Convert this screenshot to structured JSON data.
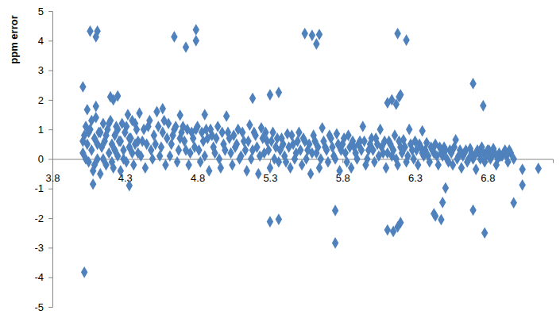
{
  "chart_data": {
    "type": "scatter",
    "y_label": "ppm error",
    "color": "#4f81bd",
    "marker": "diamond",
    "grid": false,
    "xlim": [
      3.8,
      7.25
    ],
    "xticks": [
      3.8,
      4.3,
      4.8,
      5.3,
      5.8,
      6.3,
      6.8
    ],
    "ylim": [
      -5,
      5
    ],
    "yticks": [
      -5,
      -4,
      -3,
      -2,
      -1,
      0,
      1,
      2,
      3,
      4,
      5
    ],
    "x": [
      4.01,
      4.02,
      4.03,
      4.04,
      4.05,
      4.06,
      4.07,
      4.08,
      4.09,
      4.1,
      4.11,
      4.12,
      4.13,
      4.14,
      4.15,
      4.16,
      4.17,
      4.18,
      4.19,
      4.2,
      4.21,
      4.22,
      4.23,
      4.24,
      4.25,
      4.26,
      4.27,
      4.28,
      4.29,
      4.3,
      4.31,
      4.32,
      4.33,
      4.34,
      4.35,
      4.36,
      4.37,
      4.38,
      4.39,
      4.4,
      4.42,
      4.44,
      4.46,
      4.48,
      4.5,
      4.52,
      4.54,
      4.56,
      4.58,
      4.6,
      4.62,
      4.64,
      4.66,
      4.68,
      4.7,
      4.72,
      4.74,
      4.76,
      4.78,
      4.8,
      4.82,
      4.84,
      4.86,
      4.88,
      4.9,
      4.92,
      4.94,
      4.96,
      4.98,
      5.0,
      5.02,
      5.04,
      5.06,
      5.08,
      5.1,
      5.12,
      5.14,
      5.16,
      5.18,
      5.2,
      5.22,
      5.24,
      5.26,
      5.28,
      5.3,
      5.32,
      5.34,
      5.36,
      5.38,
      5.4,
      5.42,
      5.44,
      5.46,
      5.48,
      5.5,
      5.52,
      5.54,
      5.56,
      5.58,
      5.6,
      5.62,
      5.64,
      5.66,
      5.68,
      5.7,
      5.72,
      5.74,
      5.76,
      5.78,
      5.8,
      5.82,
      5.84,
      5.86,
      5.88,
      5.9,
      5.92,
      5.94,
      5.96,
      5.98,
      6.0,
      6.02,
      6.04,
      6.06,
      6.08,
      6.1,
      6.12,
      6.14,
      6.16,
      6.18,
      6.2,
      6.22,
      6.24,
      6.26,
      6.28,
      6.3,
      6.32,
      6.34,
      6.36,
      6.38,
      6.4,
      6.42,
      6.44,
      6.46,
      6.48,
      6.5,
      6.52,
      6.54,
      6.56,
      6.58,
      6.6,
      6.62,
      6.64,
      6.66,
      6.68,
      6.7,
      6.72,
      6.74,
      6.76,
      6.78,
      6.8,
      6.82,
      6.84,
      6.86,
      6.88,
      6.9,
      6.92,
      6.94,
      6.96,
      6.98,
      4.01,
      4.03,
      4.05,
      4.07,
      4.09,
      4.11,
      4.13,
      4.15,
      4.17,
      4.19,
      4.21,
      4.23,
      4.25,
      4.27,
      4.29,
      4.31,
      4.33,
      4.35,
      4.37,
      4.39,
      4.41,
      4.43,
      4.45,
      4.47,
      4.49,
      4.51,
      4.53,
      4.55,
      4.57,
      4.59,
      4.61,
      4.63,
      4.65,
      4.67,
      4.69,
      4.71,
      4.73,
      4.75,
      4.77,
      4.79,
      4.81,
      4.83,
      4.85,
      4.87,
      4.89,
      4.91,
      4.93,
      4.95,
      4.97,
      4.99,
      5.01,
      5.03,
      5.05,
      5.07,
      5.09,
      5.11,
      5.13,
      5.15,
      5.17,
      5.19,
      5.21,
      5.23,
      5.25,
      5.27,
      5.29,
      5.31,
      5.33,
      5.35,
      5.37,
      5.39,
      5.41,
      5.43,
      5.45,
      5.47,
      5.49,
      5.51,
      5.53,
      5.55,
      5.57,
      5.59,
      5.61,
      5.63,
      5.65,
      5.67,
      5.69,
      5.71,
      5.73,
      5.75,
      5.77,
      5.79,
      5.81,
      5.83,
      5.85,
      5.87,
      5.89,
      5.91,
      5.93,
      5.95,
      5.97,
      5.99,
      6.01,
      6.03,
      6.05,
      6.07,
      6.09,
      6.11,
      6.13,
      6.15,
      6.17,
      6.19,
      6.21,
      6.23,
      6.25,
      6.27,
      6.29,
      6.31,
      6.33,
      6.35,
      6.37,
      6.39,
      6.41,
      6.43,
      6.45,
      6.47,
      6.49,
      6.51,
      6.53,
      6.55,
      6.57,
      6.59,
      6.61,
      6.63,
      6.65,
      6.67,
      6.69,
      6.71,
      6.73,
      6.75,
      6.77,
      6.79,
      6.81,
      6.83,
      6.85,
      6.87,
      6.89,
      6.91,
      6.93,
      6.95,
      4.01,
      4.06,
      4.11,
      4.1,
      4.02,
      4.64,
      4.72,
      4.79,
      4.79,
      5.54,
      5.59,
      5.62,
      5.64,
      6.18,
      6.24,
      5.3,
      5.36,
      5.3,
      5.36,
      5.18,
      5.75,
      5.75,
      6.11,
      6.14,
      6.17,
      6.19,
      6.2,
      6.11,
      6.15,
      6.18,
      6.2,
      6.44,
      6.48,
      6.49,
      6.51,
      6.43,
      6.7,
      6.77,
      6.7,
      6.78,
      6.98,
      7.04,
      7.04,
      7.15,
      4.2,
      4.25,
      4.22,
      4.1,
      4.04,
      4.56,
      4.68,
      4.85,
      4.08,
      4.33,
      6.35
    ],
    "values": [
      0.2,
      0.8,
      1.1,
      0.5,
      -0.1,
      1.0,
      0.3,
      -0.4,
      0.7,
      1.4,
      0.0,
      0.9,
      -0.5,
      0.4,
      1.2,
      0.6,
      -0.2,
      1.0,
      0.2,
      1.3,
      0.5,
      -0.3,
      0.8,
      1.1,
      0.1,
      0.6,
      -0.4,
      1.2,
      0.3,
      0.9,
      -0.1,
      1.5,
      0.4,
      0.7,
      1.3,
      -0.2,
      0.5,
      1.0,
      0.2,
      1.55,
      0.6,
      -0.3,
      1.1,
      0.3,
      0.8,
      1.6,
      0.1,
      0.9,
      -0.2,
      1.2,
      0.5,
      1.0,
      -0.1,
      0.7,
      1.1,
      0.3,
      -0.2,
      0.9,
      0.4,
      1.1,
      -0.1,
      0.6,
      1.0,
      -0.4,
      0.8,
      0.2,
      1.1,
      -0.3,
      0.5,
      1.45,
      0.7,
      -0.2,
      0.4,
      1.0,
      0.1,
      0.6,
      -0.4,
      1.15,
      0.3,
      0.8,
      -0.5,
      1.05,
      0.2,
      0.6,
      -0.3,
      0.9,
      0.4,
      -0.1,
      0.7,
      0.1,
      0.85,
      -0.3,
      0.5,
      0.2,
      0.9,
      -0.2,
      0.6,
      0.3,
      -0.5,
      0.8,
      0.2,
      -0.3,
      1.05,
      0.4,
      -0.1,
      0.7,
      0.1,
      0.85,
      -0.4,
      0.5,
      0.2,
      0.8,
      -0.3,
      0.4,
      0.0,
      0.6,
      1.1,
      -0.2,
      0.3,
      0.7,
      -0.1,
      0.5,
      1.0,
      0.2,
      -0.3,
      0.6,
      0.1,
      0.8,
      -0.2,
      0.4,
      0.65,
      -0.1,
      1.0,
      0.3,
      0.6,
      -0.2,
      0.4,
      0.1,
      0.55,
      -0.1,
      0.3,
      0.5,
      -0.2,
      0.2,
      0.4,
      0.0,
      0.3,
      -0.2,
      0.65,
      0.1,
      -0.3,
      0.2,
      -0.1,
      0.35,
      0.0,
      -0.35,
      0.2,
      0.4,
      -0.1,
      0.3,
      0.0,
      0.35,
      -0.2,
      0.2,
      0.1,
      0.3,
      -0.1,
      0.2,
      0.0,
      0.6,
      0.0,
      0.9,
      1.3,
      -0.2,
      0.5,
      0.9,
      0.0,
      0.8,
      1.2,
      -0.1,
      0.3,
      1.0,
      0.6,
      0.0,
      1.1,
      0.7,
      0.2,
      1.2,
      0.6,
      0.1,
      1.0,
      0.5,
      1.3,
      0.0,
      0.5,
      1.1,
      0.4,
      1.3,
      0.7,
      0.1,
      0.8,
      1.1,
      0.3,
      0.9,
      0.6,
      1.0,
      0.2,
      0.7,
      1.0,
      0.3,
      0.9,
      0.1,
      0.7,
      1.0,
      0.4,
      0.7,
      0.0,
      0.9,
      0.3,
      0.9,
      0.2,
      0.8,
      0.5,
      0.0,
      0.9,
      0.3,
      0.6,
      0.0,
      0.9,
      0.4,
      0.1,
      0.7,
      0.9,
      0.3,
      0.6,
      0.0,
      0.7,
      0.3,
      0.5,
      -0.1,
      0.4,
      0.8,
      0.0,
      0.6,
      0.3,
      0.7,
      0.0,
      0.5,
      0.2,
      0.6,
      0.4,
      0.0,
      0.6,
      0.3,
      0.8,
      0.4,
      0.0,
      0.5,
      0.3,
      0.7,
      -0.1,
      0.4,
      0.6,
      0.2,
      0.5,
      0.3,
      0.6,
      0.0,
      0.5,
      0.3,
      0.7,
      0.1,
      0.4,
      0.6,
      0.2,
      0.5,
      0.3,
      0.0,
      0.6,
      0.2,
      0.4,
      0.1,
      0.5,
      0.0,
      0.3,
      0.5,
      0.2,
      0.3,
      0.1,
      0.4,
      0.2,
      0.1,
      0.4,
      0.1,
      0.3,
      -0.1,
      0.2,
      0.4,
      0.0,
      0.3,
      0.1,
      0.3,
      0.0,
      0.2,
      0.1,
      0.3,
      0.0,
      0.2,
      0.1,
      0.3,
      0.1,
      0.2,
      0.0,
      0.1,
      0.2,
      0.1,
      0.3,
      2.44,
      4.32,
      4.32,
      4.13,
      -3.83,
      4.13,
      3.78,
      4.37,
      4.0,
      4.24,
      4.18,
      3.89,
      4.21,
      4.24,
      4.02,
      2.17,
      2.25,
      -2.12,
      -2.04,
      2.05,
      -1.74,
      -2.84,
      1.9,
      2.0,
      1.85,
      2.1,
      2.17,
      -2.4,
      -2.45,
      -2.3,
      -2.15,
      -1.93,
      -2.05,
      -1.47,
      -0.98,
      -1.85,
      2.55,
      1.8,
      -1.73,
      -2.5,
      -1.48,
      -0.88,
      -0.35,
      -0.32,
      2.1,
      2.13,
      2.0,
      1.78,
      1.67,
      1.7,
      1.48,
      1.5,
      -0.85,
      -0.9,
      0.95
    ]
  }
}
